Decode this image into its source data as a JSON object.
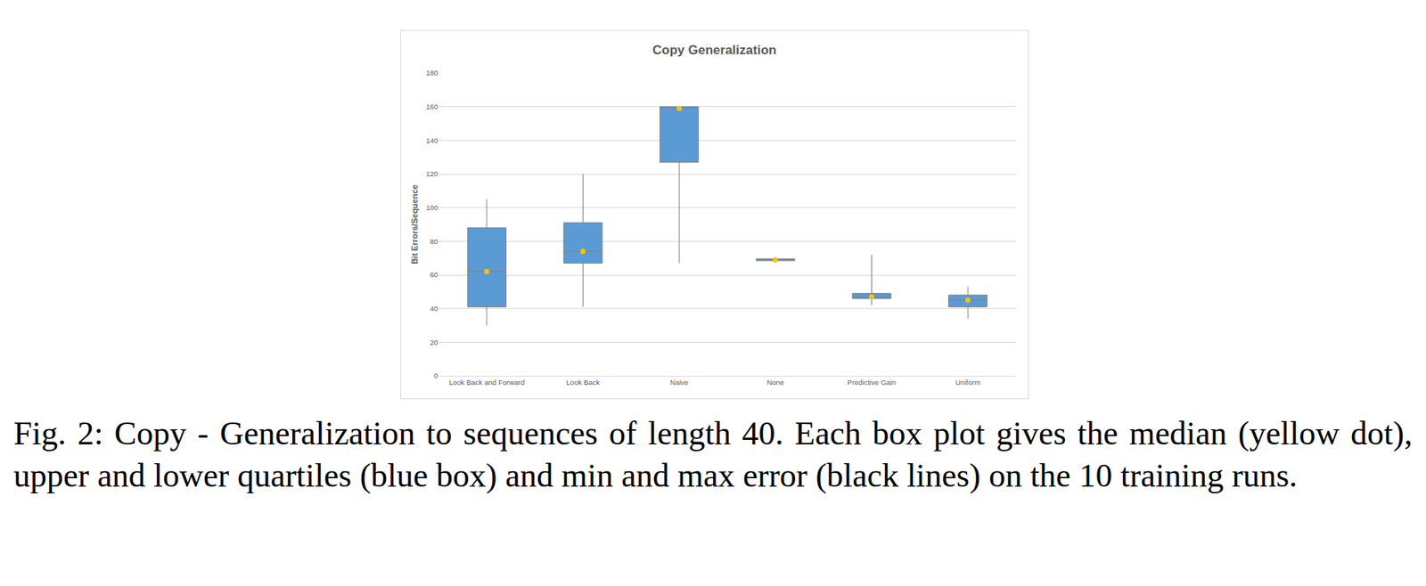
{
  "chart_data": {
    "type": "box",
    "title": "Copy Generalization",
    "y_label": "Bit Errors/Sequence",
    "categories": [
      "Look Back and Forward",
      "Look Back",
      "Naive",
      "None",
      "Predictive Gain",
      "Uniform"
    ],
    "min": [
      30,
      41,
      67,
      68,
      42,
      34
    ],
    "q1": [
      41,
      67,
      127,
      68.5,
      46,
      41
    ],
    "median": [
      62,
      74,
      159,
      69,
      47,
      45
    ],
    "q3": [
      88,
      91,
      160,
      69.5,
      49,
      48
    ],
    "max": [
      105,
      120,
      160,
      70,
      72,
      53
    ],
    "color": "#5b9bd5",
    "ylim": [
      0,
      180
    ],
    "yticks": [
      0,
      20,
      40,
      60,
      80,
      100,
      120,
      140,
      160,
      180
    ],
    "grid": true
  },
  "caption": "Fig. 2: Copy - Generalization to sequences of length 40. Each box plot gives the median (yellow dot), upper and lower quartiles (blue box) and min and max error (black lines) on the 10 training runs."
}
